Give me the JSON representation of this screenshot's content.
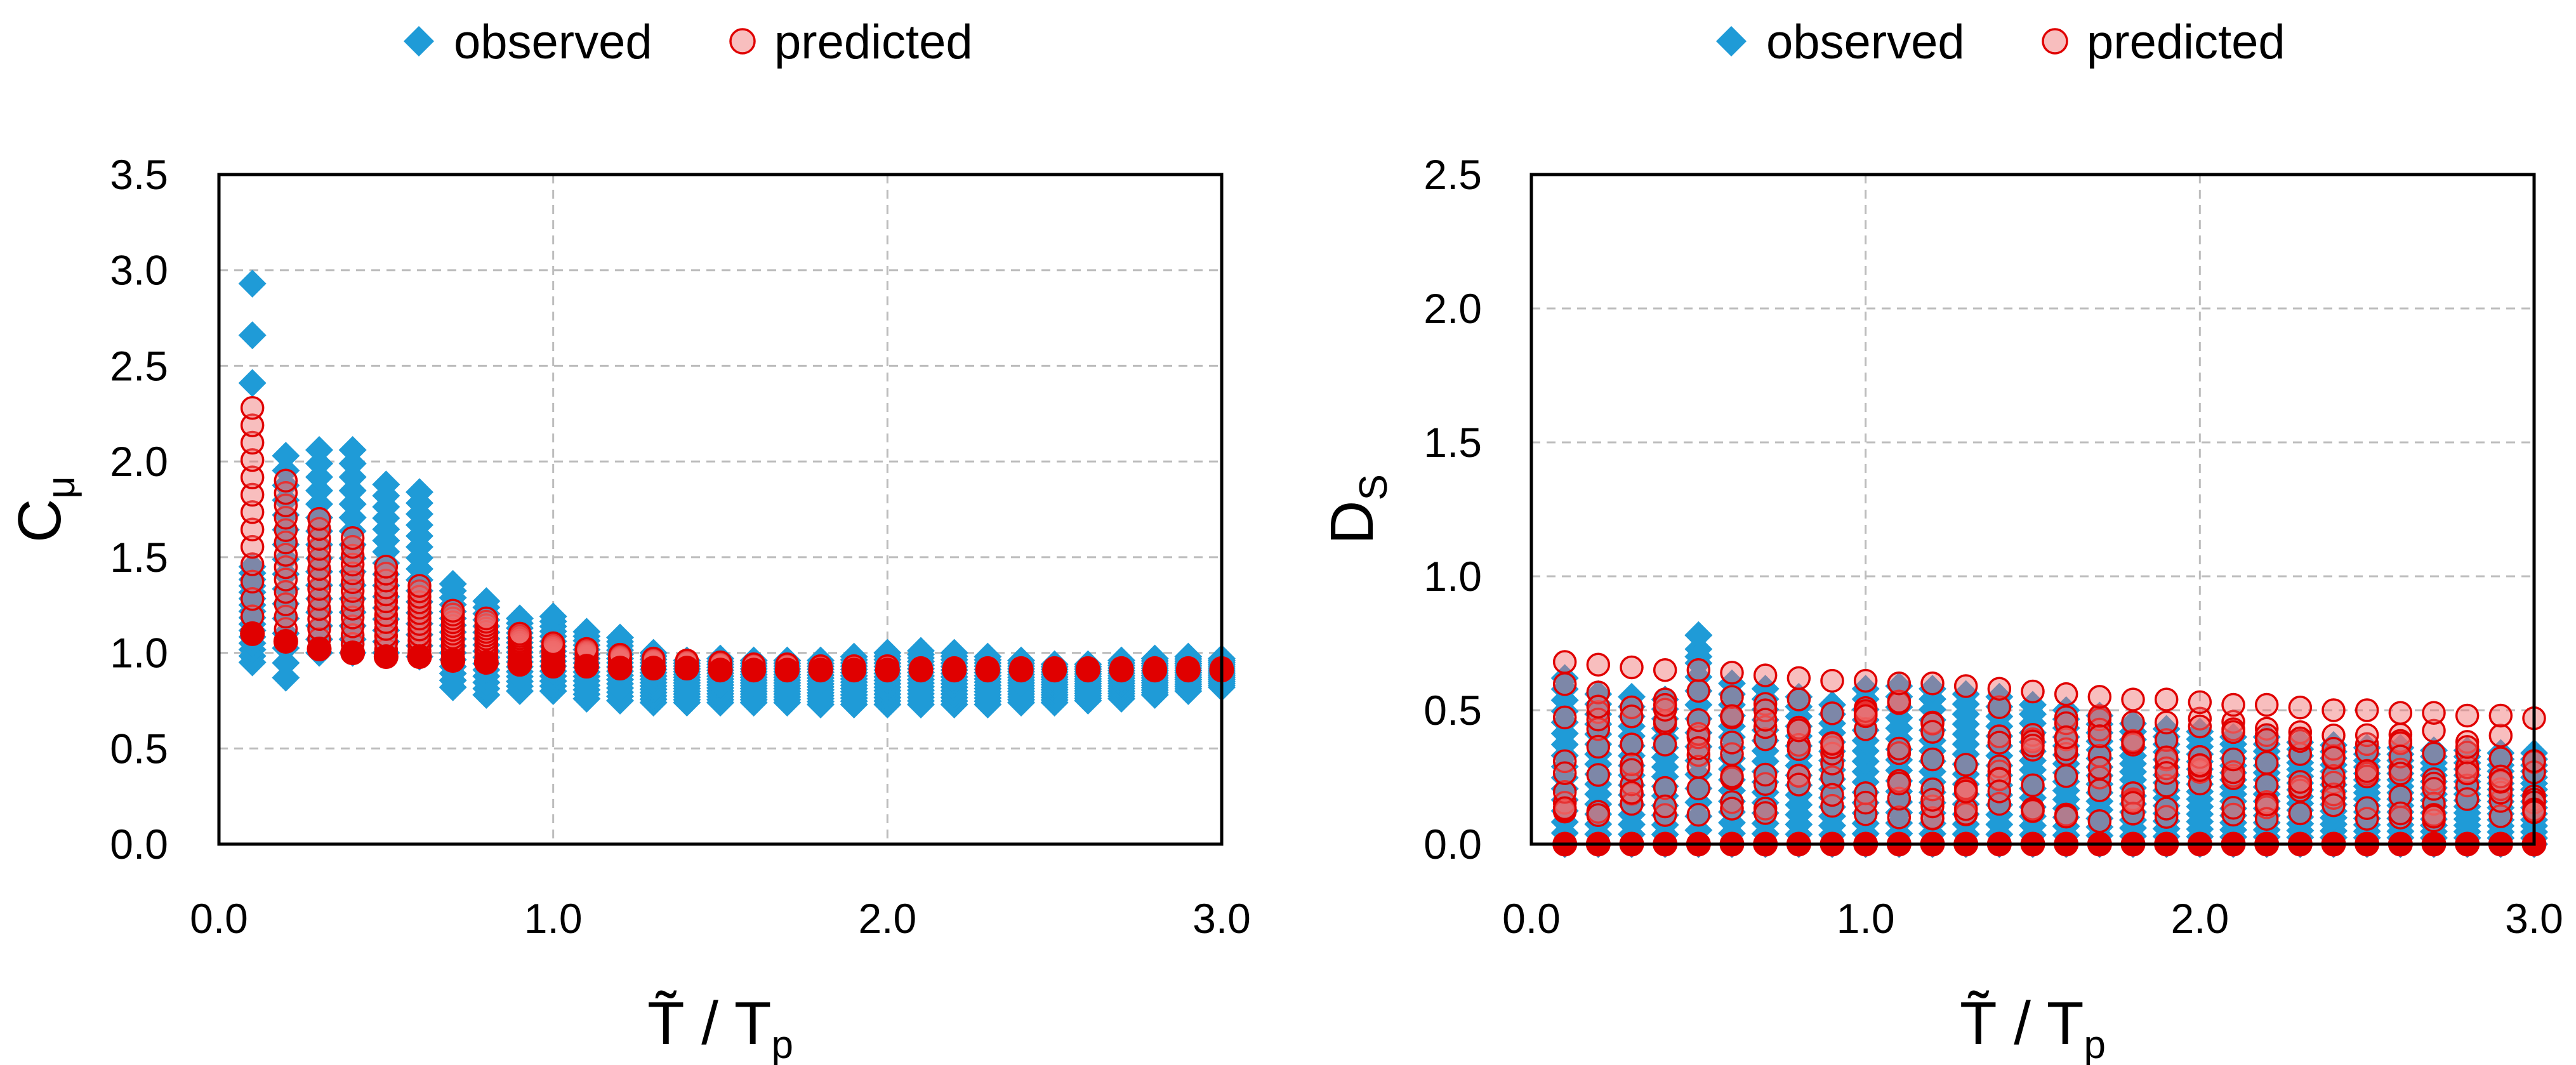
{
  "colors": {
    "observed": "#1f9bd7",
    "predicted_stroke": "#e00000",
    "predicted_fill": "rgba(240,110,110,0.45)",
    "predicted_solid": "#e00000",
    "grid": "#bdbdbd",
    "axis": "#000000"
  },
  "chart_data": [
    {
      "type": "scatter",
      "legend": {
        "placement": "top-center",
        "observed_label": "observed",
        "predicted_label": "predicted"
      },
      "xlabel": {
        "main": "T̃ / T",
        "sub": "p"
      },
      "ylabel": {
        "main": "C",
        "sub": "μ"
      },
      "xlim": [
        0,
        3
      ],
      "ylim": [
        0,
        3.5
      ],
      "grid": true,
      "xticks": [
        {
          "value": 0,
          "label": "0.0"
        },
        {
          "value": 1,
          "label": "1.0"
        },
        {
          "value": 2,
          "label": "2.0"
        },
        {
          "value": 3,
          "label": "3.0"
        }
      ],
      "yticks": [
        {
          "value": 0,
          "label": "0.0"
        },
        {
          "value": 0.5,
          "label": "0.5"
        },
        {
          "value": 1,
          "label": "1.0"
        },
        {
          "value": 1.5,
          "label": "1.5"
        },
        {
          "value": 2,
          "label": "2.0"
        },
        {
          "value": 2.5,
          "label": "2.5"
        },
        {
          "value": 3,
          "label": "3.0"
        },
        {
          "value": 3.5,
          "label": "3.5"
        }
      ],
      "x": [
        0.1,
        0.2,
        0.3,
        0.4,
        0.5,
        0.6,
        0.7,
        0.8,
        0.9,
        1.0,
        1.1,
        1.2,
        1.3,
        1.4,
        1.5,
        1.6,
        1.7,
        1.8,
        1.9,
        2.0,
        2.1,
        2.2,
        2.3,
        2.4,
        2.5,
        2.6,
        2.7,
        2.8,
        2.9,
        3.0
      ],
      "series": [
        {
          "name": "observed",
          "marker": "diamond",
          "y_min": [
            0.95,
            0.87,
            1.0,
            1.0,
            1.0,
            0.98,
            0.82,
            0.78,
            0.8,
            0.8,
            0.76,
            0.75,
            0.74,
            0.74,
            0.74,
            0.74,
            0.74,
            0.73,
            0.73,
            0.73,
            0.73,
            0.73,
            0.73,
            0.74,
            0.74,
            0.75,
            0.76,
            0.78,
            0.8,
            0.82
          ],
          "y_max": [
            1.45,
            2.03,
            2.06,
            2.06,
            1.88,
            1.84,
            1.36,
            1.27,
            1.18,
            1.19,
            1.11,
            1.08,
            1.0,
            0.96,
            0.97,
            0.96,
            0.96,
            0.96,
            0.98,
            1.0,
            1.01,
            1.0,
            0.98,
            0.96,
            0.94,
            0.94,
            0.96,
            0.97,
            0.98,
            0.97
          ],
          "outliers": [
            {
              "x": 0.1,
              "y": [
                2.93,
                2.66,
                2.41
              ]
            }
          ]
        },
        {
          "name": "predicted",
          "marker": "circle",
          "y_min": [
            1.1,
            1.06,
            1.02,
            1.0,
            0.98,
            0.98,
            0.96,
            0.95,
            0.94,
            0.93,
            0.93,
            0.92,
            0.92,
            0.92,
            0.91,
            0.91,
            0.91,
            0.91,
            0.91,
            0.91,
            0.91,
            0.91,
            0.91,
            0.91,
            0.91,
            0.91,
            0.91,
            0.91,
            0.91,
            0.91
          ],
          "y_max": [
            2.28,
            1.9,
            1.7,
            1.6,
            1.45,
            1.35,
            1.22,
            1.18,
            1.1,
            1.05,
            1.02,
            0.99,
            0.97,
            0.96,
            0.95,
            0.94,
            0.94,
            0.93,
            0.93,
            0.93,
            0.92,
            0.92,
            0.92,
            0.92,
            0.92,
            0.92,
            0.92,
            0.92,
            0.92,
            0.92
          ]
        }
      ]
    },
    {
      "type": "scatter",
      "legend": {
        "placement": "top-center",
        "observed_label": "observed",
        "predicted_label": "predicted"
      },
      "xlabel": {
        "main": "T̃ / T",
        "sub": "p"
      },
      "ylabel": {
        "main": "D",
        "sub": "S"
      },
      "xlim": [
        0,
        3
      ],
      "ylim": [
        0,
        2.5
      ],
      "grid": true,
      "xticks": [
        {
          "value": 0,
          "label": "0.0"
        },
        {
          "value": 1,
          "label": "1.0"
        },
        {
          "value": 2,
          "label": "2.0"
        },
        {
          "value": 3,
          "label": "3.0"
        }
      ],
      "yticks": [
        {
          "value": 0,
          "label": "0.0"
        },
        {
          "value": 0.5,
          "label": "0.5"
        },
        {
          "value": 1,
          "label": "1.0"
        },
        {
          "value": 1.5,
          "label": "1.5"
        },
        {
          "value": 2,
          "label": "2.0"
        },
        {
          "value": 2.5,
          "label": "2.5"
        }
      ],
      "x": [
        0.1,
        0.2,
        0.3,
        0.4,
        0.5,
        0.6,
        0.7,
        0.8,
        0.9,
        1.0,
        1.1,
        1.2,
        1.3,
        1.4,
        1.5,
        1.6,
        1.7,
        1.8,
        1.9,
        2.0,
        2.1,
        2.2,
        2.3,
        2.4,
        2.5,
        2.6,
        2.7,
        2.8,
        2.9,
        3.0
      ],
      "series": [
        {
          "name": "observed",
          "marker": "diamond",
          "y_min": [
            0.0,
            0.0,
            0.0,
            0.0,
            0.0,
            0.0,
            0.0,
            0.0,
            0.0,
            0.0,
            0.0,
            0.0,
            0.0,
            0.0,
            0.0,
            0.0,
            0.0,
            0.0,
            0.0,
            0.0,
            0.0,
            0.0,
            0.0,
            0.0,
            0.0,
            0.0,
            0.0,
            0.0,
            0.0,
            0.0
          ],
          "y_max": [
            0.62,
            0.56,
            0.55,
            0.54,
            0.78,
            0.6,
            0.58,
            0.55,
            0.52,
            0.58,
            0.59,
            0.58,
            0.56,
            0.55,
            0.52,
            0.5,
            0.48,
            0.45,
            0.43,
            0.42,
            0.4,
            0.4,
            0.38,
            0.37,
            0.36,
            0.36,
            0.35,
            0.35,
            0.34,
            0.34
          ],
          "outliers": [
            {
              "x": 0.5,
              "y": [
                0.78,
                0.7
              ]
            }
          ]
        },
        {
          "name": "predicted",
          "marker": "circle",
          "y_min": [
            0.0,
            0.0,
            0.0,
            0.0,
            0.0,
            0.0,
            0.0,
            0.0,
            0.0,
            0.0,
            0.0,
            0.0,
            0.0,
            0.0,
            0.0,
            0.0,
            0.0,
            0.0,
            0.0,
            0.0,
            0.0,
            0.0,
            0.0,
            0.0,
            0.0,
            0.0,
            0.0,
            0.0,
            0.0,
            0.0
          ],
          "y_max": [
            0.68,
            0.67,
            0.66,
            0.65,
            0.65,
            0.64,
            0.63,
            0.62,
            0.61,
            0.61,
            0.6,
            0.6,
            0.59,
            0.58,
            0.57,
            0.56,
            0.55,
            0.54,
            0.54,
            0.53,
            0.52,
            0.52,
            0.51,
            0.5,
            0.5,
            0.49,
            0.49,
            0.48,
            0.48,
            0.47
          ]
        }
      ]
    }
  ]
}
